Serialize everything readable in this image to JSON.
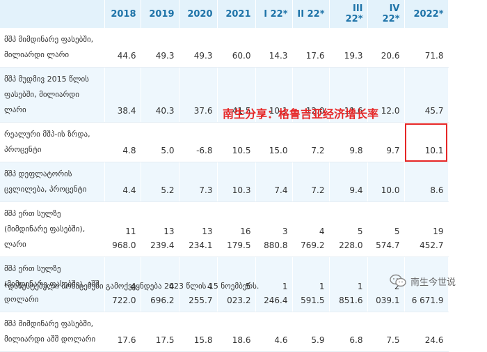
{
  "table": {
    "header": [
      "",
      "2018",
      "2019",
      "2020",
      "2021",
      "I 22*",
      "II 22*",
      "III 22*",
      "IV 22*",
      "2022*"
    ],
    "rows": [
      {
        "label": "მშპ მიმდინარე ფასებში, მილიარდი ლარი",
        "values": [
          "44.6",
          "49.3",
          "49.3",
          "60.0",
          "14.3",
          "17.6",
          "19.3",
          "20.6",
          "71.8"
        ]
      },
      {
        "label": "მშპ მუდმივ 2015 წლის ფასებში, მილიარდი ლარი",
        "values": [
          "38.4",
          "40.3",
          "37.6",
          "41.5",
          "10.1",
          "12.0",
          "11.6",
          "12.0",
          "45.7"
        ]
      },
      {
        "label": "რეალური მშპ-ის ზრდა, პროცენტი",
        "values": [
          "4.8",
          "5.0",
          "-6.8",
          "10.5",
          "15.0",
          "7.2",
          "9.8",
          "9.7",
          "10.1"
        ]
      },
      {
        "label": "მშპ დეფლატორის ცვლილება, პროცენტი",
        "values": [
          "4.4",
          "5.2",
          "7.3",
          "10.3",
          "7.4",
          "7.2",
          "9.4",
          "10.0",
          "8.6"
        ]
      },
      {
        "label": "მშპ ერთ სულზე (მიმდინარე ფასებში), ლარი",
        "values": [
          "11 968.0",
          "13 239.4",
          "13 234.1",
          "16 179.5",
          "3 880.8",
          "4 769.2",
          "5 228.0",
          "5 574.7",
          "19 452.7"
        ]
      },
      {
        "label": "მშპ ერთ სულზე (მიმდინარე ფასებში), აშშ დოლარი",
        "values": [
          "4 722.0",
          "4 696.2",
          "4 255.7",
          "5 023.2",
          "1 246.4",
          "1 591.5",
          "1 851.6",
          "2 039.1",
          "6 671.9"
        ]
      },
      {
        "label": "მშპ მიმდინარე ფასებში, მილიარდი აშშ დოლარი",
        "values": [
          "17.6",
          "17.5",
          "15.8",
          "18.6",
          "4.6",
          "5.9",
          "6.8",
          "7.5",
          "24.6"
        ]
      }
    ]
  },
  "overlay_text": "南生分享：格鲁吉亚经济增长率",
  "footnote": "*დაზუსტებული მონაცემები გამოქვეყნდება 2023 წლის 15 ნოემბერს.",
  "watermark": {
    "text": "南生今世说",
    "icon": "wechat-icon"
  },
  "colors": {
    "header_bg": "#e3f2fb",
    "header_text": "#1e73a8",
    "row_alt_bg": "#eef7fd",
    "highlight": "#e62727"
  }
}
